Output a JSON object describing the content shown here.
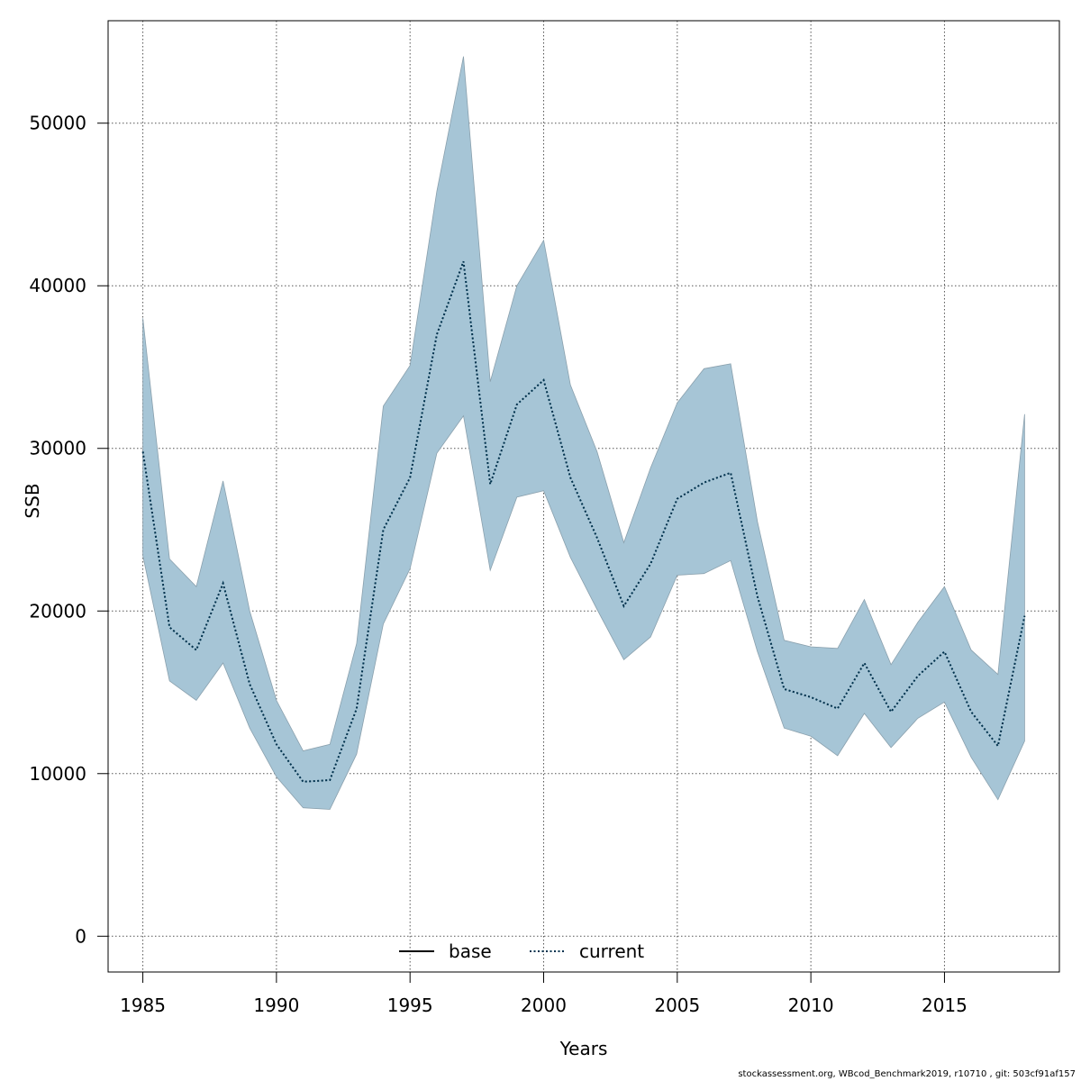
{
  "chart_data": {
    "type": "area",
    "xlabel": "Years",
    "ylabel": "SSB",
    "xlim": [
      1983.7,
      2019.3
    ],
    "ylim": [
      -2200,
      56300
    ],
    "x_ticks": [
      1985,
      1990,
      1995,
      2000,
      2005,
      2010,
      2015
    ],
    "x_tick_labels": [
      "1985",
      "1990",
      "1995",
      "2000",
      "2005",
      "2010",
      "2015"
    ],
    "y_ticks": [
      0,
      10000,
      20000,
      30000,
      40000,
      50000
    ],
    "y_tick_labels": [
      "0",
      "10000",
      "20000",
      "30000",
      "40000",
      "50000"
    ],
    "grid": true,
    "legend": {
      "placement": "bottom-center",
      "entries": [
        {
          "name": "base",
          "style": "solid",
          "color": "#000000"
        },
        {
          "name": "current",
          "style": "dotted",
          "color": "#000000"
        }
      ]
    },
    "x": [
      1985,
      1986,
      1987,
      1988,
      1989,
      1990,
      1991,
      1992,
      1993,
      1994,
      1995,
      1996,
      1997,
      1998,
      1999,
      2000,
      2001,
      2002,
      2003,
      2004,
      2005,
      2006,
      2007,
      2008,
      2009,
      2010,
      2011,
      2012,
      2013,
      2014,
      2015,
      2016,
      2017,
      2018
    ],
    "series": [
      {
        "name": "current",
        "values": [
          29800,
          19000,
          17600,
          21700,
          15500,
          11800,
          9500,
          9600,
          14000,
          25000,
          28200,
          37000,
          41500,
          27800,
          32700,
          34200,
          28200,
          24500,
          20300,
          22900,
          26900,
          27900,
          28500,
          20900,
          15200,
          14700,
          14000,
          16800,
          13800,
          16000,
          17500,
          13800,
          11700,
          19700
        ],
        "lower": [
          23400,
          15700,
          14500,
          16800,
          12800,
          9800,
          7900,
          7800,
          11200,
          19200,
          22600,
          29700,
          32000,
          22500,
          27000,
          27400,
          23300,
          20100,
          17000,
          18400,
          22200,
          22300,
          23100,
          17500,
          12800,
          12300,
          11100,
          13700,
          11600,
          13400,
          14400,
          11000,
          8400,
          12000
        ],
        "upper": [
          38000,
          23200,
          21500,
          28000,
          20000,
          14500,
          11400,
          11800,
          18000,
          32600,
          35100,
          45800,
          54100,
          34100,
          40000,
          42800,
          33900,
          29800,
          24200,
          28800,
          32800,
          34900,
          35200,
          25500,
          18200,
          17800,
          17700,
          20700,
          16700,
          19300,
          21500,
          17600,
          16100,
          32100
        ]
      },
      {
        "name": "base",
        "values": [
          29800,
          19000,
          17600,
          21700,
          15500,
          11800,
          9500,
          9600,
          14000,
          25000,
          28200,
          37000,
          41500,
          27800,
          32700,
          34200,
          28200,
          24500,
          20300,
          22900,
          26900,
          27900,
          28500,
          20900,
          15200,
          14700,
          14000,
          16800,
          13800,
          16000,
          17500,
          13800,
          11700,
          19700
        ]
      }
    ]
  },
  "style": {
    "band_fill": "#a6c5d6",
    "band_stroke": "#8aa0ad",
    "current_line_color": "#00334f",
    "grid_color": "#555555"
  },
  "footer": {
    "text": "stockassessment.org, WBcod_Benchmark2019, r10710 , git: 503cf91af157"
  }
}
